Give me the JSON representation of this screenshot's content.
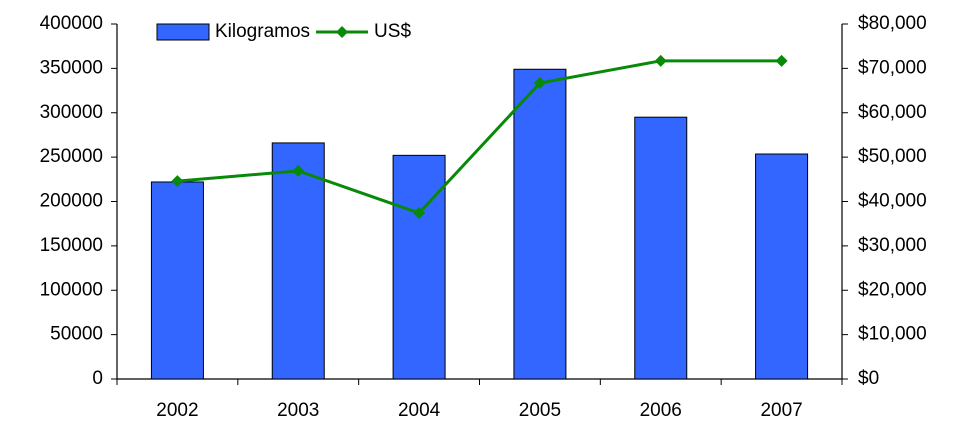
{
  "chart_data": {
    "type": "bar-line",
    "categories": [
      "2002",
      "2003",
      "2004",
      "2005",
      "2006",
      "2007"
    ],
    "series": [
      {
        "name": "Kilogramos",
        "type": "bar",
        "color": "#3366ff",
        "values": [
          222000,
          266000,
          252000,
          349000,
          295000,
          253500
        ]
      },
      {
        "name": "US$",
        "type": "line",
        "axis": "y2",
        "color": "#088a08",
        "values": [
          44600,
          46900,
          37400,
          66700,
          71700,
          71700
        ]
      }
    ],
    "ylim": [
      0,
      400000
    ],
    "yticks": [
      0,
      50000,
      100000,
      150000,
      200000,
      250000,
      300000,
      350000,
      400000
    ],
    "y2lim": [
      0,
      80000
    ],
    "y2ticks": [
      {
        "value": 0,
        "label": "$0"
      },
      {
        "value": 10000,
        "label": "$10,000"
      },
      {
        "value": 20000,
        "label": "$20,000"
      },
      {
        "value": 30000,
        "label": "$30,000"
      },
      {
        "value": 40000,
        "label": "$40,000"
      },
      {
        "value": 50000,
        "label": "$50,000"
      },
      {
        "value": 60000,
        "label": "$60,000"
      },
      {
        "value": 70000,
        "label": "$70,000"
      },
      {
        "value": 80000,
        "label": "$80,000"
      }
    ],
    "grid": false,
    "legend": "top"
  }
}
